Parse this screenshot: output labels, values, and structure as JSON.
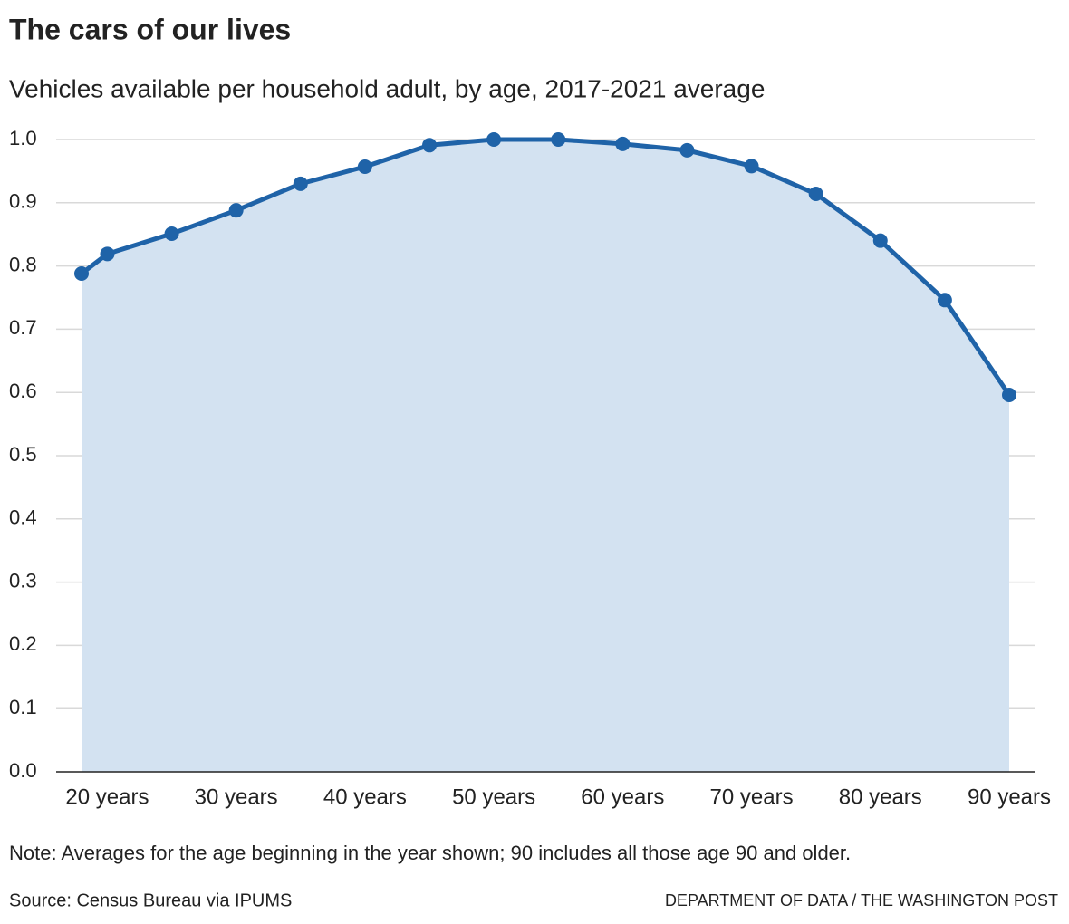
{
  "chart_data": {
    "type": "line",
    "title": "The cars of our lives",
    "subtitle": "Vehicles available per household adult, by age, 2017-2021 average",
    "x": [
      18,
      20,
      25,
      30,
      35,
      40,
      45,
      50,
      55,
      60,
      65,
      70,
      75,
      80,
      85,
      90
    ],
    "values": [
      0.788,
      0.819,
      0.851,
      0.888,
      0.93,
      0.957,
      0.991,
      1.0,
      1.0,
      0.993,
      0.983,
      0.958,
      0.914,
      0.84,
      0.746,
      0.596
    ],
    "color": "#1f63a8",
    "area_color": "#d3e2f1",
    "xlim": [
      18,
      90
    ],
    "xticks": [
      {
        "value": 20,
        "label": "20 years"
      },
      {
        "value": 30,
        "label": "30 years"
      },
      {
        "value": 40,
        "label": "40 years"
      },
      {
        "value": 50,
        "label": "50 years"
      },
      {
        "value": 60,
        "label": "60 years"
      },
      {
        "value": 70,
        "label": "70 years"
      },
      {
        "value": 80,
        "label": "80 years"
      },
      {
        "value": 90,
        "label": "90 years"
      }
    ],
    "ylim": [
      0,
      1
    ],
    "yticks": [
      {
        "value": 0,
        "label": "0.0"
      },
      0.1,
      0.2,
      0.3,
      0.4,
      0.5,
      0.6,
      0.7,
      0.8,
      0.9,
      {
        "value": 1,
        "label": "1.0"
      }
    ],
    "grid": true,
    "note": "Note: Averages for the age beginning in the year shown; 90 includes all those age 90 and older.",
    "source": "Source: Census Bureau via IPUMS",
    "credit": "DEPARTMENT OF DATA / THE WASHINGTON POST"
  }
}
